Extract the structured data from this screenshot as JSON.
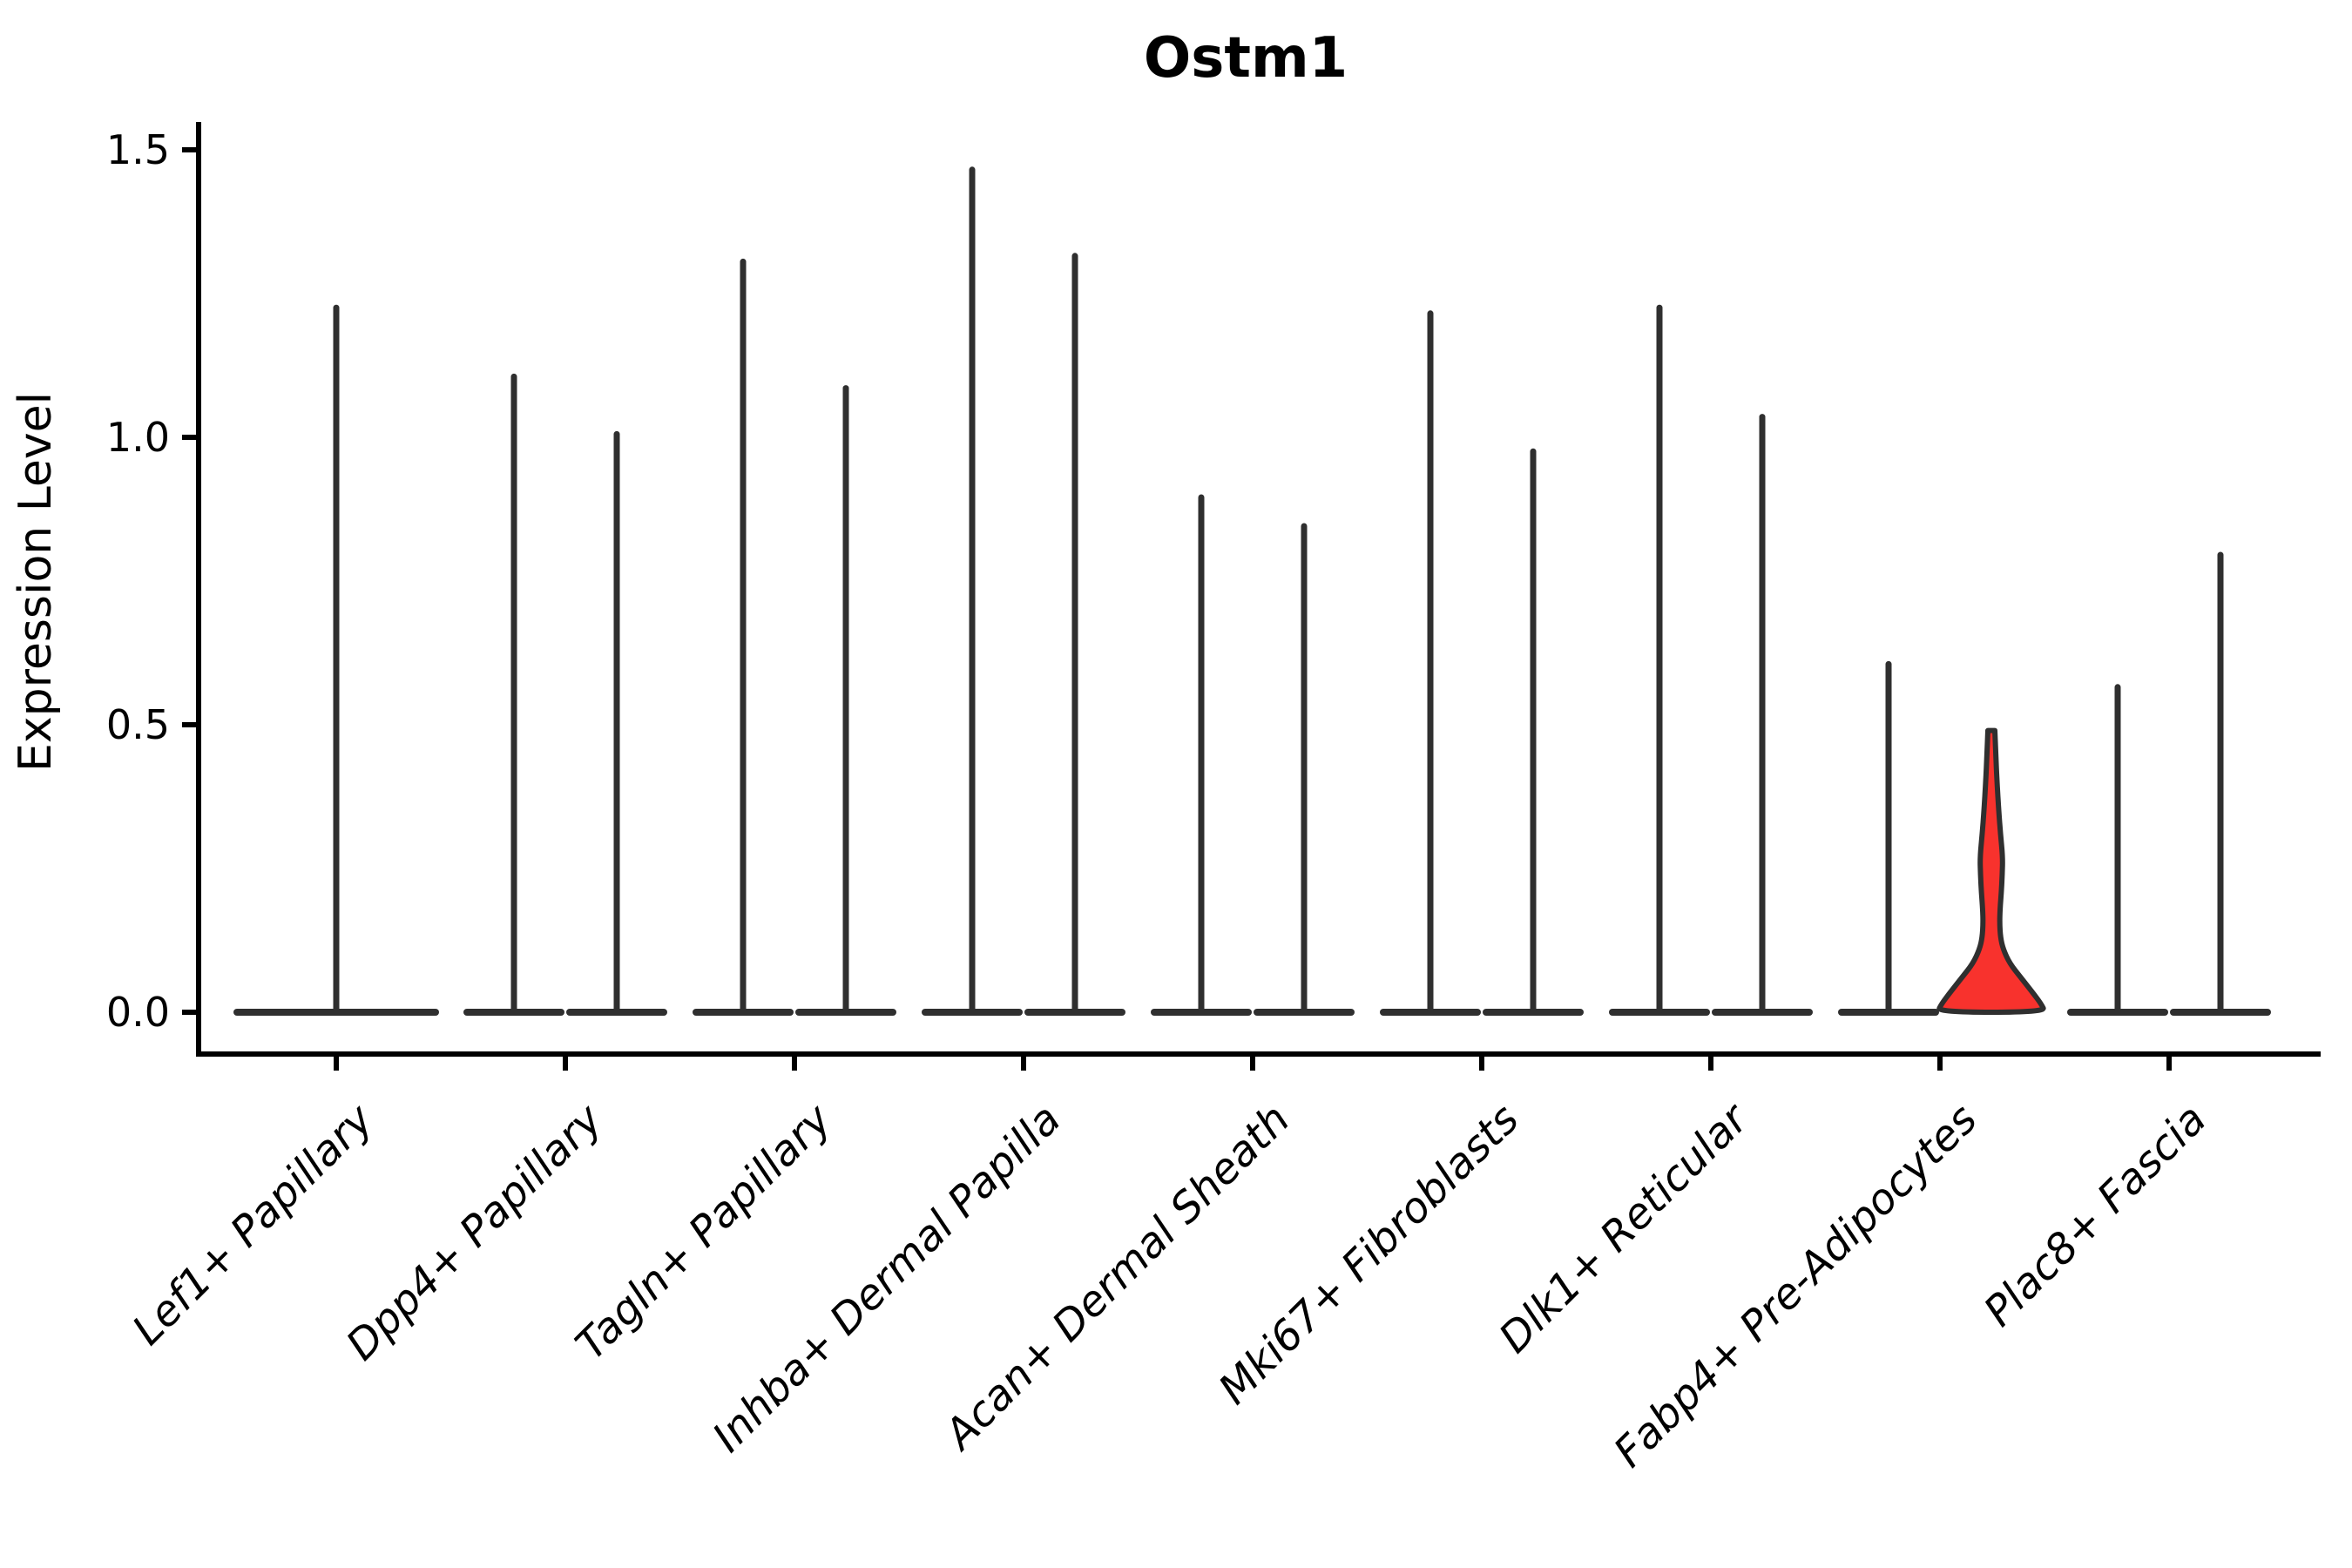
{
  "title": "Ostm1",
  "chart_data": {
    "type": "violin",
    "title": "Ostm1",
    "ylabel": "Expression Level",
    "xlabel": "",
    "grid": false,
    "legend": "none",
    "ylim": [
      -0.07,
      1.55
    ],
    "ytick_labels": [
      "0.0",
      "0.5",
      "1.0",
      "1.5"
    ],
    "ytick_values": [
      0,
      0.5,
      1.0,
      1.5
    ],
    "categories": [
      "Lef1+ Papillary",
      "Dpp4+ Papillary",
      "Tagln+ Papillary",
      "Inhba+ Dermal Papilla",
      "Acan+ Dermal Sheath",
      "Mki67+ Fibroblasts",
      "Dlk1+ Reticular",
      "Fabp4+ Pre-Adipocytes",
      "Plac8+ Fascia"
    ],
    "series": [
      {
        "category": "Lef1+ Papillary",
        "violins": [
          {
            "max": 1.23,
            "side": "center",
            "width": "full"
          }
        ]
      },
      {
        "category": "Dpp4+ Papillary",
        "violins": [
          {
            "max": 1.11,
            "side": "left"
          },
          {
            "max": 1.01,
            "side": "right"
          }
        ]
      },
      {
        "category": "Tagln+ Papillary",
        "violins": [
          {
            "max": 1.31,
            "side": "left"
          },
          {
            "max": 1.09,
            "side": "right"
          }
        ]
      },
      {
        "category": "Inhba+ Dermal Papilla",
        "violins": [
          {
            "max": 1.47,
            "side": "left"
          },
          {
            "max": 1.32,
            "side": "right"
          }
        ]
      },
      {
        "category": "Acan+ Dermal Sheath",
        "violins": [
          {
            "max": 0.9,
            "side": "left"
          },
          {
            "max": 0.85,
            "side": "right"
          }
        ]
      },
      {
        "category": "Mki67+ Fibroblasts",
        "violins": [
          {
            "max": 1.22,
            "side": "left"
          },
          {
            "max": 0.98,
            "side": "right"
          }
        ]
      },
      {
        "category": "Dlk1+ Reticular",
        "violins": [
          {
            "max": 1.23,
            "side": "left"
          },
          {
            "max": 1.04,
            "side": "right"
          }
        ]
      },
      {
        "category": "Fabp4+ Pre-Adipocytes",
        "violins": [
          {
            "max": 0.61,
            "side": "left"
          },
          {
            "max": 0.49,
            "side": "right",
            "highlighted": true,
            "body_profile": [
              [
                0.49,
                4
              ],
              [
                0.45,
                5
              ],
              [
                0.4,
                6.5
              ],
              [
                0.35,
                8.5
              ],
              [
                0.31,
                10.5
              ],
              [
                0.27,
                13
              ],
              [
                0.24,
                12.5
              ],
              [
                0.21,
                11.5
              ],
              [
                0.18,
                10
              ],
              [
                0.155,
                9.5
              ],
              [
                0.13,
                10.5
              ],
              [
                0.11,
                13.5
              ],
              [
                0.085,
                21
              ],
              [
                0.06,
                34
              ],
              [
                0.035,
                47
              ],
              [
                0.015,
                57
              ],
              [
                0.0,
                62
              ]
            ]
          }
        ]
      },
      {
        "category": "Plac8+ Fascia",
        "violins": [
          {
            "max": 0.57,
            "side": "left"
          },
          {
            "max": 0.8,
            "side": "right"
          }
        ]
      }
    ],
    "colors": {
      "violin_stroke": "#2f2f2f",
      "highlight_fill": "#f8322d",
      "axis": "#000000",
      "text": "#000000",
      "background": "#ffffff"
    }
  }
}
